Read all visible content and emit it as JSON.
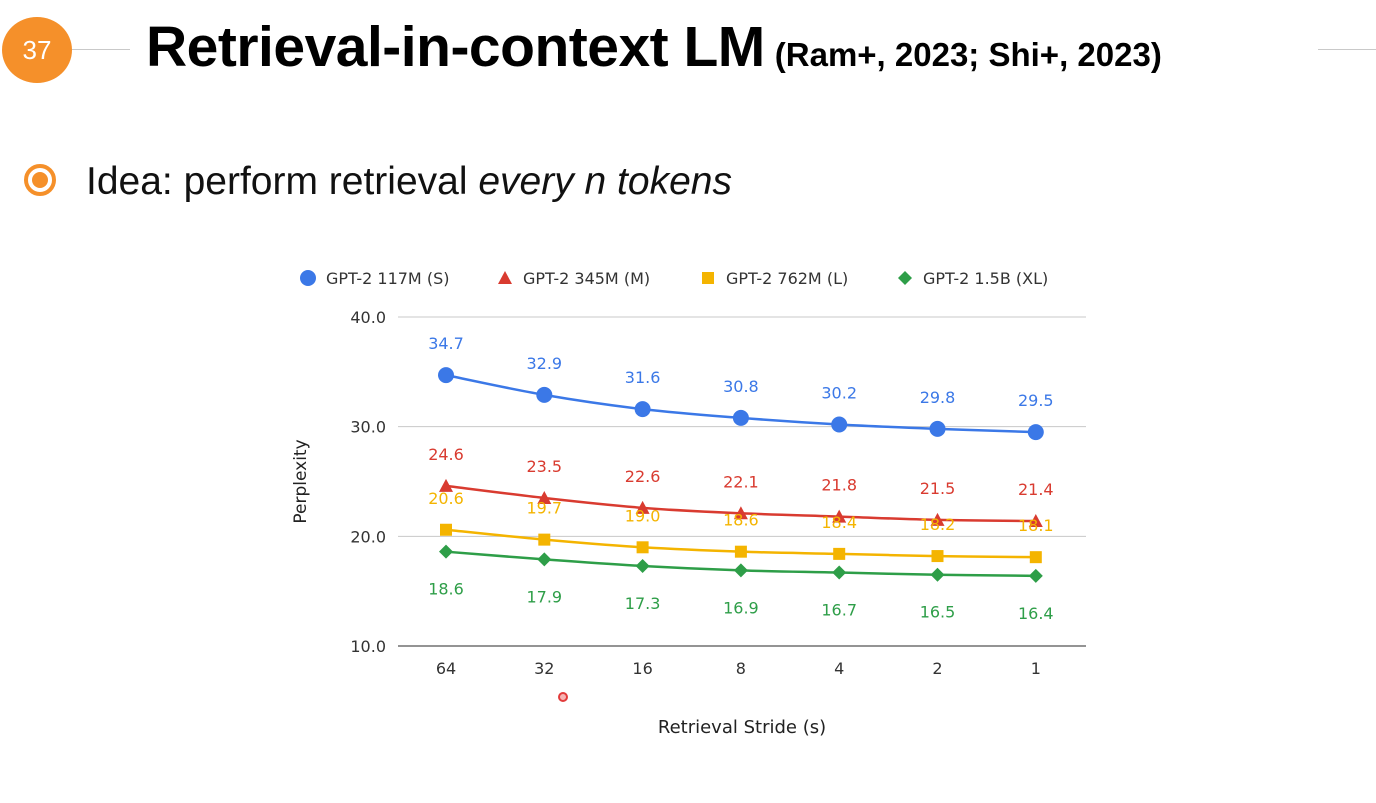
{
  "slide": {
    "number": "37",
    "title": "Retrieval-in-context LM",
    "citation": "(Ram+, 2023; Shi+, 2023)",
    "bullet_prefix": "Idea: perform retrieval ",
    "bullet_emphasis": "every n tokens",
    "accent_color": "#f5902a"
  },
  "chart_data": {
    "type": "line",
    "categories": [
      "64",
      "32",
      "16",
      "8",
      "4",
      "2",
      "1"
    ],
    "xlabel": "Retrieval Stride (s)",
    "ylabel": "Perplexity",
    "ylim": [
      10,
      40
    ],
    "yticks": [
      "10.0",
      "20.0",
      "30.0",
      "40.0"
    ],
    "grid": true,
    "legend_position": "top",
    "series": [
      {
        "name": "GPT-2 117M (S)",
        "color": "#3b78e7",
        "marker": "circle",
        "values": [
          34.7,
          32.9,
          31.6,
          30.8,
          30.2,
          29.8,
          29.5
        ],
        "label_side": "above"
      },
      {
        "name": "GPT-2 345M (M)",
        "color": "#d93b30",
        "marker": "triangle",
        "values": [
          24.6,
          23.5,
          22.6,
          22.1,
          21.8,
          21.5,
          21.4
        ],
        "label_side": "above"
      },
      {
        "name": "GPT-2 762M (L)",
        "color": "#f4b400",
        "marker": "square",
        "values": [
          20.6,
          19.7,
          19.0,
          18.6,
          18.4,
          18.2,
          18.1
        ],
        "label_side": "above"
      },
      {
        "name": "GPT-2 1.5B (XL)",
        "color": "#2e9e48",
        "marker": "diamond",
        "values": [
          18.6,
          17.9,
          17.3,
          16.9,
          16.7,
          16.5,
          16.4
        ],
        "label_side": "below"
      }
    ]
  }
}
